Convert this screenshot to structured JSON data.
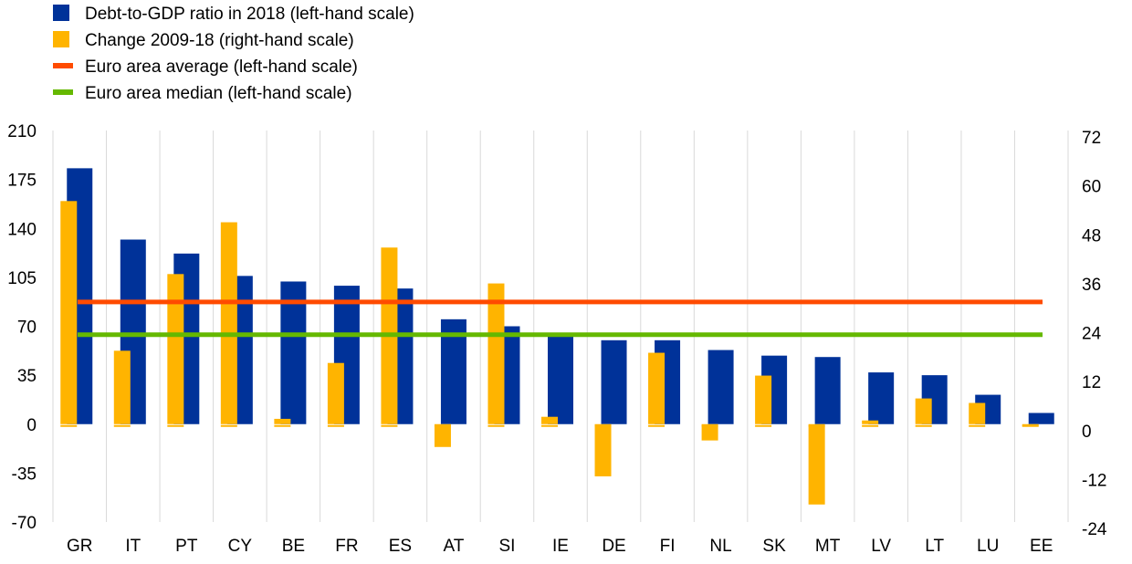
{
  "chart_data": {
    "type": "bar",
    "title": "",
    "categories": [
      "GR",
      "IT",
      "PT",
      "CY",
      "BE",
      "FR",
      "ES",
      "AT",
      "SI",
      "IE",
      "DE",
      "FI",
      "NL",
      "SK",
      "MT",
      "LV",
      "LT",
      "LU",
      "EE"
    ],
    "series": [
      {
        "name": "Debt-to-GDP ratio in 2018 (left-hand scale)",
        "axis": "left",
        "color": "#003299",
        "values": [
          183,
          132,
          122,
          106,
          102,
          99,
          97,
          75,
          70,
          64,
          60,
          60,
          53,
          49,
          48,
          37,
          35,
          21,
          8
        ]
      },
      {
        "name": "Change 2009-18 (right-hand scale)",
        "axis": "right",
        "color": "#FFB400",
        "values": [
          54.7,
          18,
          36.8,
          49.5,
          1.3,
          15,
          43.3,
          -5.6,
          34.5,
          1.8,
          -12.8,
          17.5,
          -4,
          11.9,
          -19.7,
          0.9,
          6.3,
          5.2,
          -0.4
        ]
      }
    ],
    "lines": [
      {
        "name": "Euro area average (left-hand scale)",
        "color": "#FF4B00",
        "value": 87.4
      },
      {
        "name": "Euro area median (left-hand scale)",
        "color": "#65B800",
        "value": 64
      }
    ],
    "left_axis": {
      "ylim": [
        -70,
        210
      ],
      "ticks": [
        210,
        175,
        140,
        105,
        70,
        35,
        0,
        -35,
        -70
      ]
    },
    "right_axis": {
      "ylim": [
        -24,
        72
      ],
      "ticks": [
        72,
        60,
        48,
        36,
        24,
        12,
        0,
        -12,
        -24
      ]
    },
    "legend_placement": "top-left"
  }
}
